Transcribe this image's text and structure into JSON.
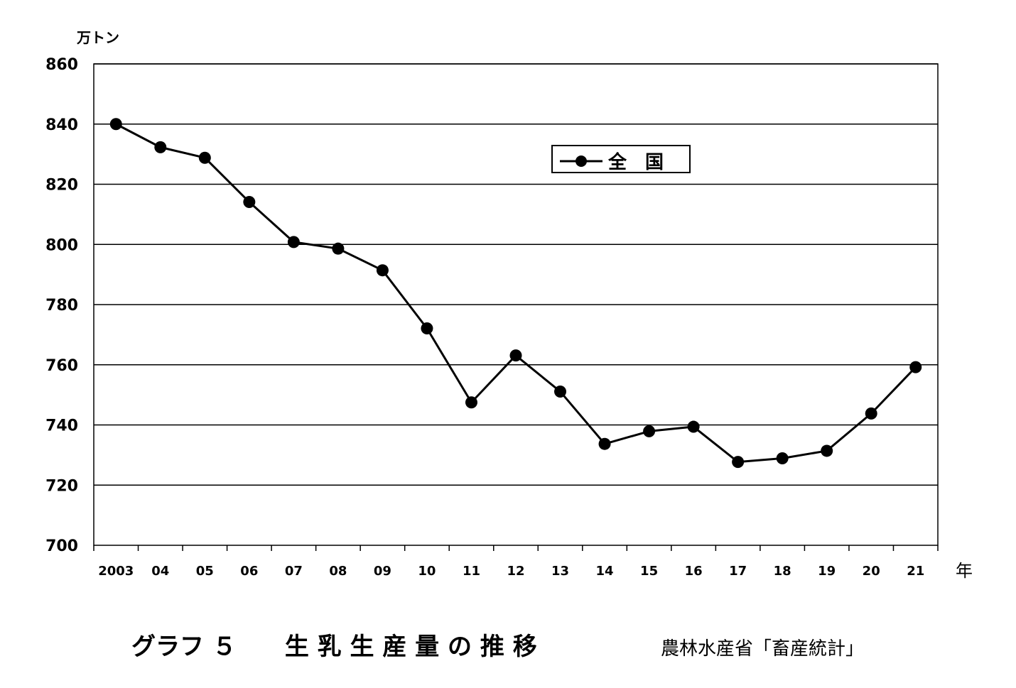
{
  "chart_data": {
    "type": "line",
    "title": "グラフ ５　　生 乳 生 産 量 の 推 移",
    "source": "農林水産省「畜産統計」",
    "ylabel": "万トン",
    "xlabel": "年",
    "ylim": [
      700,
      860
    ],
    "yticks": [
      "700",
      "720",
      "740",
      "760",
      "780",
      "800",
      "820",
      "840",
      "860"
    ],
    "grid": true,
    "legend_position": "top-right",
    "categories": [
      "2003",
      "04",
      "05",
      "06",
      "07",
      "08",
      "09",
      "10",
      "11",
      "12",
      "13",
      "14",
      "15",
      "16",
      "17",
      "18",
      "19",
      "20",
      "21"
    ],
    "series": [
      {
        "name": "全　国",
        "color": "#000000",
        "values": [
          840,
          832.3,
          828.8,
          814.1,
          800.8,
          798.6,
          791.4,
          772.1,
          747.5,
          763.1,
          751.1,
          733.7,
          737.9,
          739.4,
          727.7,
          728.9,
          731.4,
          743.8,
          759.2
        ]
      }
    ]
  }
}
